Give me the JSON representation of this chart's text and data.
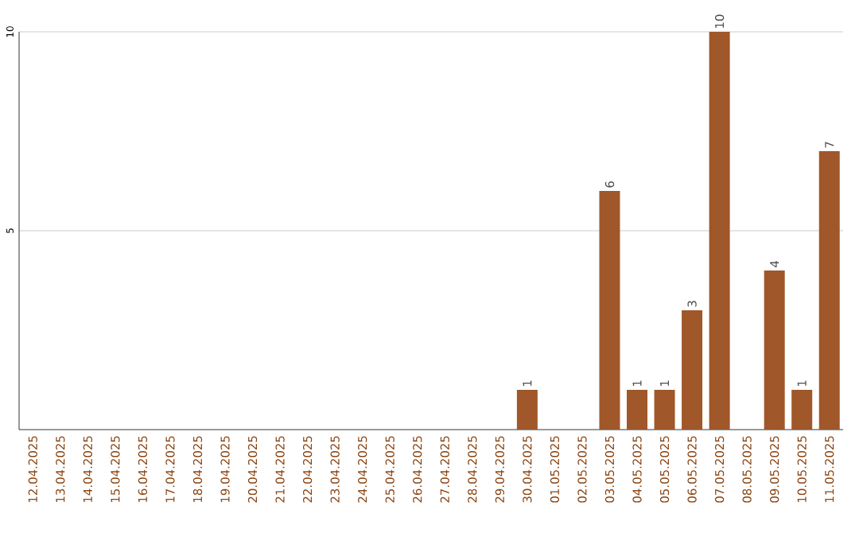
{
  "chart_data": {
    "type": "bar",
    "categories": [
      "12.04.2025",
      "13.04.2025",
      "14.04.2025",
      "15.04.2025",
      "16.04.2025",
      "17.04.2025",
      "18.04.2025",
      "19.04.2025",
      "20.04.2025",
      "21.04.2025",
      "22.04.2025",
      "23.04.2025",
      "24.04.2025",
      "25.04.2025",
      "26.04.2025",
      "27.04.2025",
      "28.04.2025",
      "29.04.2025",
      "30.04.2025",
      "01.05.2025",
      "02.05.2025",
      "03.05.2025",
      "04.05.2025",
      "05.05.2025",
      "06.05.2025",
      "07.05.2025",
      "08.05.2025",
      "09.05.2025",
      "10.05.2025",
      "11.05.2025"
    ],
    "values": [
      0,
      0,
      0,
      0,
      0,
      0,
      0,
      0,
      0,
      0,
      0,
      0,
      0,
      0,
      0,
      0,
      0,
      0,
      1,
      0,
      0,
      6,
      1,
      1,
      3,
      10,
      0,
      4,
      1,
      7
    ],
    "value_labels": [
      null,
      null,
      null,
      null,
      null,
      null,
      null,
      null,
      null,
      null,
      null,
      null,
      null,
      null,
      null,
      null,
      null,
      null,
      "1",
      null,
      null,
      "6",
      "1",
      "1",
      "3",
      "10",
      null,
      "4",
      "1",
      "7"
    ],
    "color": "#a0572a",
    "ylim": [
      0,
      10
    ],
    "yticks": [
      5,
      10
    ],
    "grid": "y"
  }
}
